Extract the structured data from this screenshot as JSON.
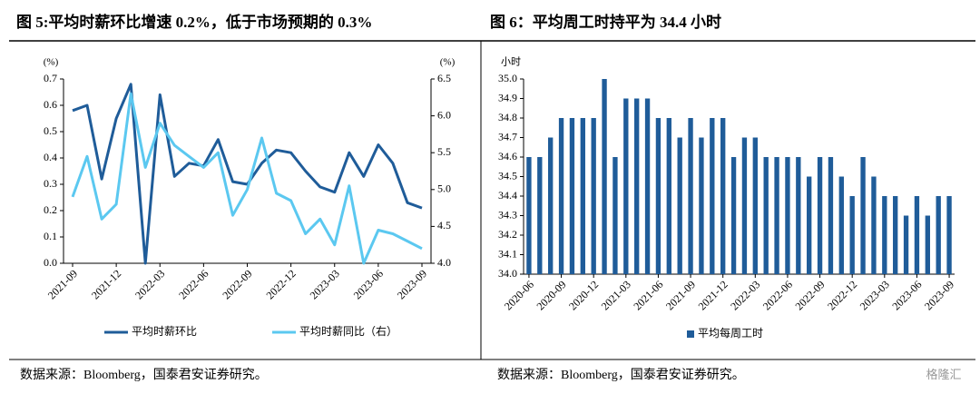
{
  "chart_data": [
    {
      "type": "line",
      "title": "图 5:平均时薪环比增速 0.2%，低于市场预期的 0.3%",
      "y_unit": "(%)",
      "y2_unit": "(%)",
      "categories": [
        "2021-09",
        null,
        null,
        "2021-12",
        null,
        null,
        "2022-03",
        null,
        null,
        "2022-06",
        null,
        null,
        "2022-09",
        null,
        null,
        "2022-12",
        null,
        null,
        "2023-03",
        null,
        null,
        "2023-06",
        null,
        null,
        "2023-09"
      ],
      "series": [
        {
          "name": "平均时薪环比",
          "color": "#1f5c99",
          "values": [
            0.58,
            0.6,
            0.32,
            0.55,
            0.68,
            0.0,
            0.64,
            0.33,
            0.38,
            0.37,
            0.47,
            0.31,
            0.3,
            0.38,
            0.43,
            0.42,
            0.35,
            0.29,
            0.27,
            0.42,
            0.33,
            0.45,
            0.38,
            0.23,
            0.21
          ]
        },
        {
          "name": "平均时薪同比（右）",
          "color": "#5bc8f0",
          "axis": "y2",
          "values": [
            4.9,
            5.45,
            4.6,
            4.8,
            6.3,
            5.3,
            5.9,
            5.6,
            5.45,
            5.3,
            5.5,
            4.65,
            5.0,
            5.7,
            4.95,
            4.85,
            4.4,
            4.6,
            4.25,
            5.05,
            4.0,
            4.45,
            4.4,
            4.3,
            4.2
          ]
        }
      ],
      "ylim": [
        0,
        0.7
      ],
      "yticks": [
        {
          "value": 0,
          "label": "0.0"
        },
        0.1,
        0.2,
        0.3,
        0.4,
        0.5,
        0.6,
        0.7
      ],
      "y2lim": [
        4.0,
        6.5
      ],
      "y2ticks": [
        {
          "value": 4,
          "label": "4.0"
        },
        4.5,
        {
          "value": 5,
          "label": "5.0"
        },
        5.5,
        {
          "value": 6,
          "label": "6.0"
        },
        6.5
      ],
      "source": "数据来源：Bloomberg，国泰君安证券研究。"
    },
    {
      "type": "bar",
      "title": "图 6：平均周工时持平为 34.4 小时",
      "y_unit": "小时",
      "categories": [
        "2020-06",
        null,
        null,
        "2020-09",
        null,
        null,
        "2020-12",
        null,
        null,
        "2021-03",
        null,
        null,
        "2021-06",
        null,
        null,
        "2021-09",
        null,
        null,
        "2021-12",
        null,
        null,
        "2022-03",
        null,
        null,
        "2022-06",
        null,
        null,
        "2022-09",
        null,
        null,
        "2022-12",
        null,
        null,
        "2023-03",
        null,
        null,
        "2023-06",
        null,
        null,
        "2023-09"
      ],
      "series": [
        {
          "name": "平均每周工时",
          "color": "#1f5c99",
          "values": [
            34.6,
            34.6,
            34.7,
            34.8,
            34.8,
            34.8,
            34.8,
            35.0,
            34.6,
            34.9,
            34.9,
            34.9,
            34.8,
            34.8,
            34.7,
            34.8,
            34.7,
            34.8,
            34.8,
            34.6,
            34.7,
            34.7,
            34.6,
            34.6,
            34.6,
            34.6,
            34.5,
            34.6,
            34.6,
            34.5,
            34.4,
            34.6,
            34.5,
            34.4,
            34.4,
            34.3,
            34.4,
            34.3,
            34.4,
            34.4
          ]
        }
      ],
      "ylim": [
        34.0,
        35.0
      ],
      "yticks": [
        {
          "value": 34,
          "label": "34.0"
        },
        34.1,
        34.2,
        34.3,
        34.4,
        34.5,
        34.6,
        34.7,
        34.8,
        34.9,
        {
          "value": 35,
          "label": "35.0"
        }
      ],
      "source": "数据来源：Bloomberg，国泰君安证券研究。"
    }
  ],
  "watermark": "格隆汇"
}
